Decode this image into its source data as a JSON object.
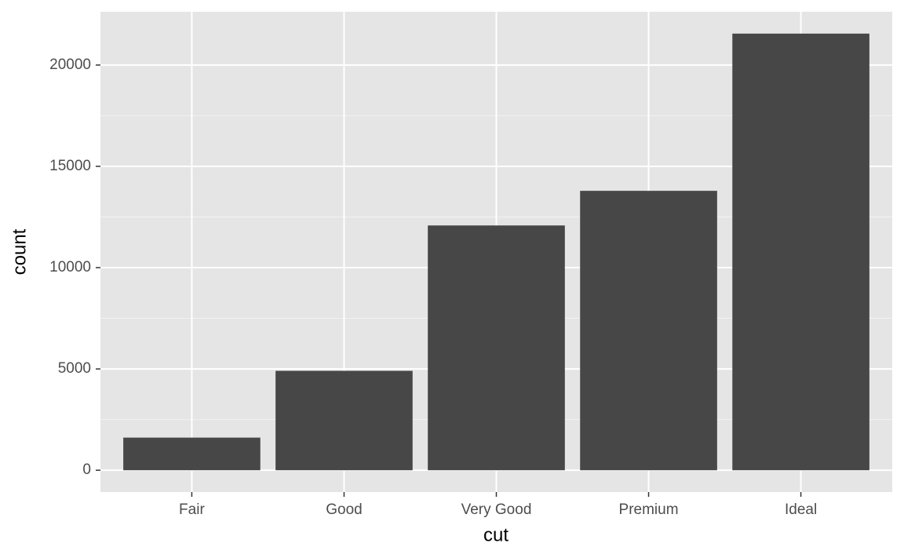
{
  "chart_data": {
    "type": "bar",
    "x_label": "cut",
    "y_label": "count",
    "categories": [
      "Fair",
      "Good",
      "Very Good",
      "Premium",
      "Ideal"
    ],
    "values": [
      1610,
      4906,
      12082,
      13791,
      21551
    ],
    "color": "#474747",
    "ylim": [
      -1078,
      22629
    ],
    "yticks": [
      0,
      5000,
      10000,
      15000,
      20000
    ],
    "grid": true
  }
}
